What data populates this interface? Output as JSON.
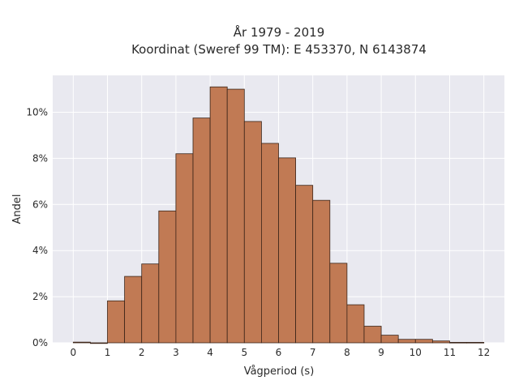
{
  "chart_data": {
    "type": "bar",
    "title_lines": [
      "År 1979 - 2019",
      "Koordinat (Sweref 99 TM): E 453370, N 6143874"
    ],
    "xlabel": "Vågperiod (s)",
    "ylabel": "Andel",
    "x_ticks": [
      "0",
      "1",
      "2",
      "3",
      "4",
      "5",
      "6",
      "7",
      "8",
      "9",
      "10",
      "11",
      "12"
    ],
    "y_ticks": [
      "0%",
      "2%",
      "4%",
      "6%",
      "8%",
      "10%"
    ],
    "y_tick_values": [
      0,
      2,
      4,
      6,
      8,
      10
    ],
    "xlim": [
      -0.6,
      12.6
    ],
    "ylim": [
      0,
      11.6
    ],
    "bin_width": 0.5,
    "bins": [
      {
        "start": 0.0,
        "value": 0.03
      },
      {
        "start": 0.5,
        "value": 0.0
      },
      {
        "start": 1.0,
        "value": 1.82
      },
      {
        "start": 1.5,
        "value": 2.88
      },
      {
        "start": 2.0,
        "value": 3.42
      },
      {
        "start": 2.5,
        "value": 5.72
      },
      {
        "start": 3.0,
        "value": 8.2
      },
      {
        "start": 3.5,
        "value": 9.75
      },
      {
        "start": 4.0,
        "value": 11.1
      },
      {
        "start": 4.5,
        "value": 11.0
      },
      {
        "start": 5.0,
        "value": 9.6
      },
      {
        "start": 5.5,
        "value": 8.65
      },
      {
        "start": 6.0,
        "value": 8.02
      },
      {
        "start": 6.5,
        "value": 6.83
      },
      {
        "start": 7.0,
        "value": 6.18
      },
      {
        "start": 7.5,
        "value": 3.45
      },
      {
        "start": 8.0,
        "value": 1.65
      },
      {
        "start": 8.5,
        "value": 0.72
      },
      {
        "start": 9.0,
        "value": 0.33
      },
      {
        "start": 9.5,
        "value": 0.15
      },
      {
        "start": 10.0,
        "value": 0.15
      },
      {
        "start": 10.5,
        "value": 0.08
      },
      {
        "start": 11.0,
        "value": 0.02
      },
      {
        "start": 11.5,
        "value": 0.02
      }
    ],
    "bar_color": "#c17a54",
    "edge_color": "#3a2418",
    "background_color": "#e9e9f0",
    "grid": true
  }
}
